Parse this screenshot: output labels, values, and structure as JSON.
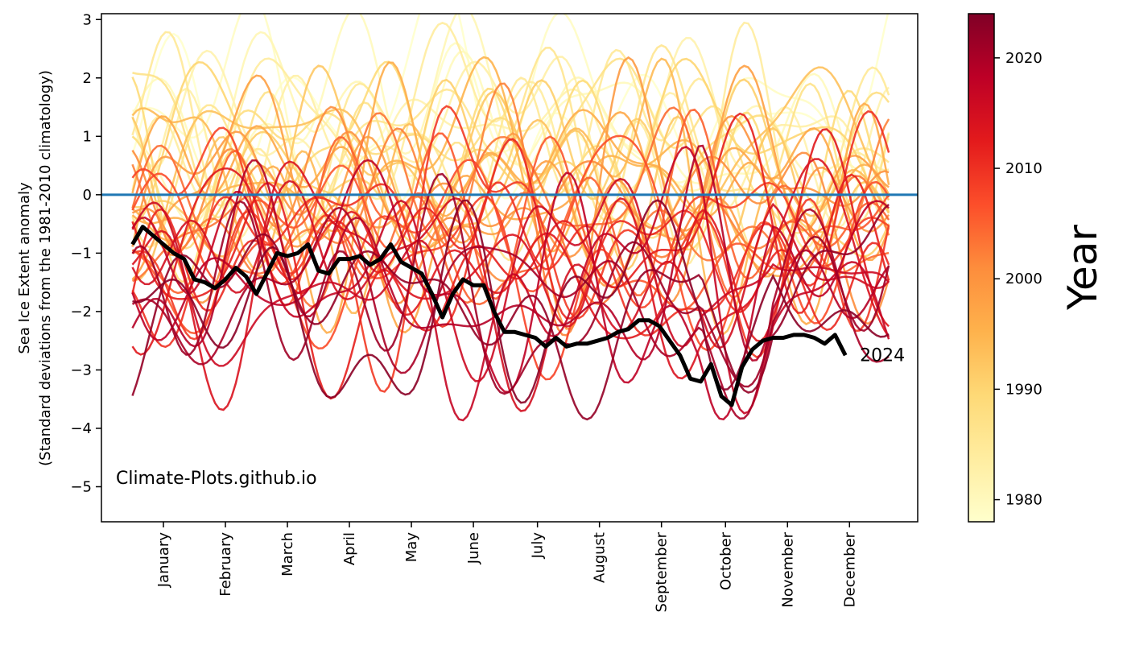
{
  "chart_data": {
    "type": "line",
    "title": "",
    "ylabel_line1": "Sea Ice Extent anomaly",
    "ylabel_line2": "(Standard deviations from the 1981-2010 climatology)",
    "xlabel": "",
    "ylim": [
      -5.6,
      3.1
    ],
    "yticks": [
      3,
      2,
      1,
      0,
      -1,
      -2,
      -3,
      -4,
      -5
    ],
    "ytick_labels": [
      "3",
      "2",
      "1",
      "0",
      "−1",
      "−2",
      "−3",
      "−4",
      "−5"
    ],
    "xlim": [
      -15,
      380
    ],
    "month_ticks": [
      15,
      45,
      75,
      105,
      135,
      165,
      196,
      226,
      256,
      287,
      317,
      347
    ],
    "month_labels": [
      "January",
      "February",
      "March",
      "April",
      "May",
      "June",
      "July",
      "August",
      "September",
      "October",
      "November",
      "December"
    ],
    "reference_line": {
      "y": 0,
      "color": "#1f77b4"
    },
    "colorbar": {
      "label": "Year",
      "range": [
        1978,
        2024
      ],
      "ticks": [
        1980,
        1990,
        2000,
        2010,
        2020
      ],
      "colormap": "YlOrRd",
      "colormap_stops": [
        "#ffffcc",
        "#ffeda0",
        "#fed976",
        "#feb24c",
        "#fd8d3c",
        "#fc4e2a",
        "#e31a1c",
        "#bd0026",
        "#800026"
      ]
    },
    "highlight": {
      "name": "2024",
      "color": "#000000",
      "days": [
        0,
        5,
        10,
        15,
        20,
        25,
        30,
        35,
        40,
        45,
        50,
        55,
        60,
        65,
        70,
        75,
        80,
        85,
        90,
        95,
        100,
        105,
        110,
        115,
        120,
        125,
        130,
        135,
        140,
        145,
        150,
        155,
        160,
        165,
        170,
        175,
        180,
        185,
        190,
        195,
        200,
        205,
        210,
        215,
        220,
        225,
        230,
        235,
        240,
        245,
        250,
        255,
        260,
        265,
        270,
        275,
        280,
        285,
        290,
        295,
        300,
        305,
        310,
        315,
        320,
        325,
        330,
        335,
        340,
        345
      ],
      "values": [
        -0.85,
        -0.55,
        -0.7,
        -0.85,
        -1.0,
        -1.1,
        -1.45,
        -1.5,
        -1.6,
        -1.45,
        -1.25,
        -1.4,
        -1.7,
        -1.35,
        -1.0,
        -1.05,
        -1.0,
        -0.85,
        -1.3,
        -1.35,
        -1.1,
        -1.1,
        -1.05,
        -1.2,
        -1.1,
        -0.85,
        -1.15,
        -1.25,
        -1.35,
        -1.7,
        -2.1,
        -1.7,
        -1.45,
        -1.55,
        -1.55,
        -2.0,
        -2.35,
        -2.35,
        -2.4,
        -2.45,
        -2.6,
        -2.45,
        -2.6,
        -2.55,
        -2.55,
        -2.5,
        -2.45,
        -2.35,
        -2.3,
        -2.15,
        -2.15,
        -2.25,
        -2.5,
        -2.75,
        -3.15,
        -3.2,
        -2.9,
        -3.45,
        -3.6,
        -2.95,
        -2.65,
        -2.5,
        -2.45,
        -2.45,
        -2.4,
        -2.4,
        -2.45,
        -2.55,
        -2.4,
        -2.75
      ]
    },
    "annotations": [
      {
        "text": "2024",
        "x": 352,
        "y": -2.85
      },
      {
        "text": "Climate-Plots.github.io",
        "x": -8,
        "y": -4.95
      }
    ]
  }
}
